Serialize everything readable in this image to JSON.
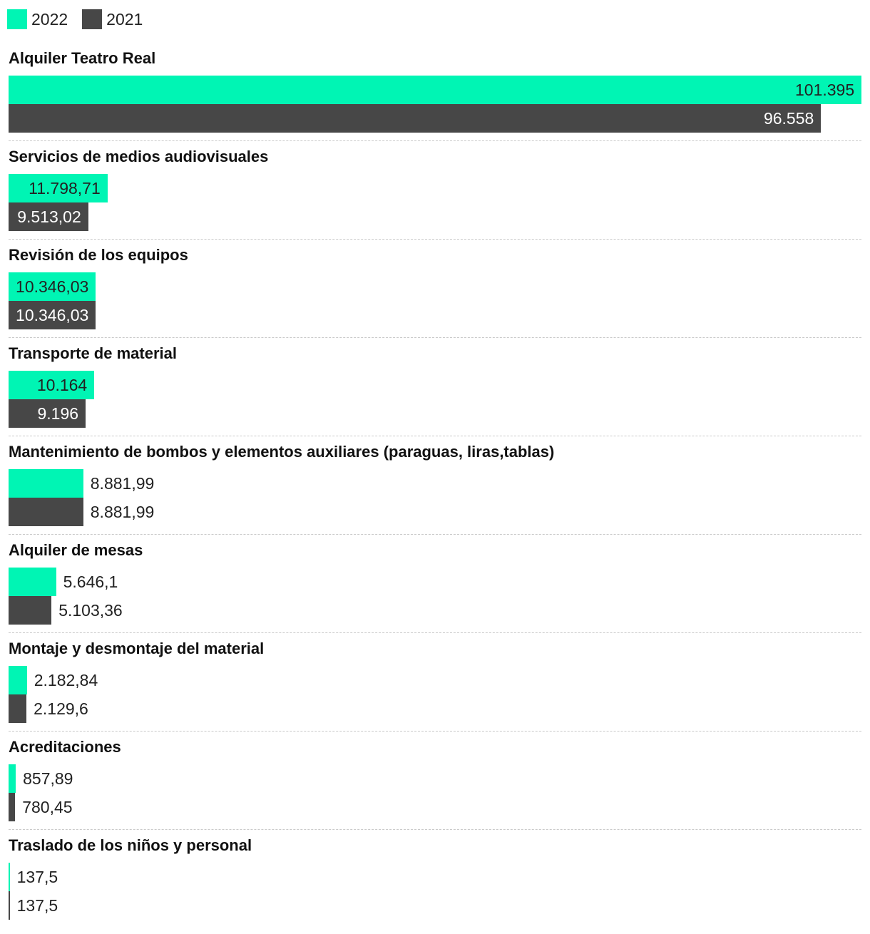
{
  "colors": {
    "series_2022": "#00f5b4",
    "series_2021": "#474747",
    "label_inside_2022": "#222222",
    "label_inside_2021": "#ffffff",
    "label_outside": "#222222"
  },
  "legend": [
    {
      "name": "2022",
      "color": "#00f5b4"
    },
    {
      "name": "2021",
      "color": "#474747"
    }
  ],
  "chart_data": {
    "type": "bar",
    "orientation": "horizontal",
    "grouped": true,
    "xlim": [
      0,
      101395
    ],
    "grid": false,
    "legend_position": "top-left",
    "categories": [
      "Alquiler Teatro Real",
      "Servicios de medios audiovisuales",
      "Revisión de los equipos",
      "Transporte de material",
      "Mantenimiento de bombos y elementos auxiliares (paraguas, liras,tablas)",
      "Alquiler de mesas",
      "Montaje y desmontaje del material",
      "Acreditaciones",
      "Traslado de los niños y personal"
    ],
    "series": [
      {
        "name": "2022",
        "values": [
          101395,
          11798.71,
          10346.03,
          10164,
          8881.99,
          5646.1,
          2182.84,
          857.89,
          137.5
        ],
        "labels": [
          "101.395",
          "11.798,71",
          "10.346,03",
          "10.164",
          "8.881,99",
          "5.646,1",
          "2.182,84",
          "857,89",
          "137,5"
        ]
      },
      {
        "name": "2021",
        "values": [
          96558,
          9513.02,
          10346.03,
          9196,
          8881.99,
          5103.36,
          2129.6,
          780.45,
          137.5
        ],
        "labels": [
          "96.558",
          "9.513,02",
          "10.346,03",
          "9.196",
          "8.881,99",
          "5.103,36",
          "2.129,6",
          "780,45",
          "137,5"
        ]
      }
    ]
  }
}
